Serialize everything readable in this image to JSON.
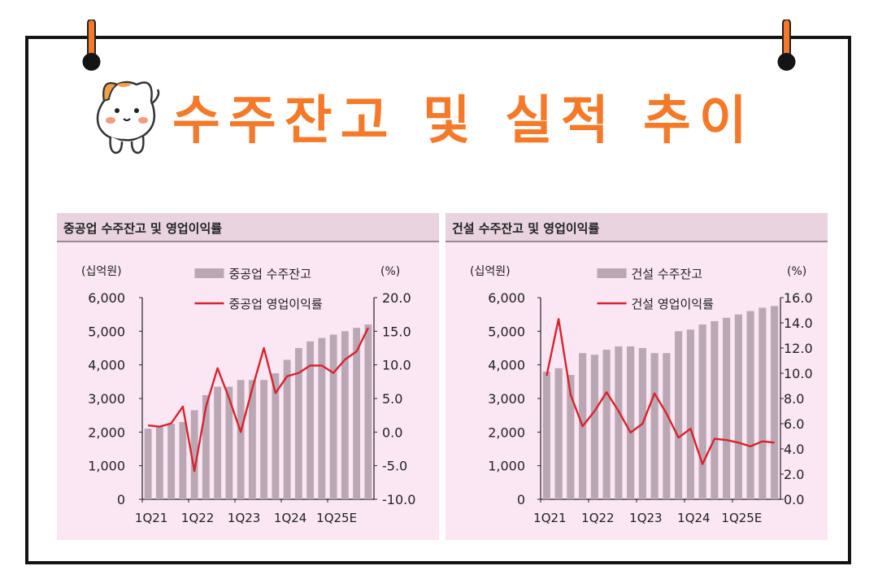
{
  "header": {
    "title": "수주잔고 및 실적 추이"
  },
  "colors": {
    "title": "#f47a2a",
    "bar": "#b9a8b3",
    "line": "#d8232e",
    "panel_bg": "#fbe6f3",
    "panel_header_bg": "#e8d3de"
  },
  "chart_data": [
    {
      "type": "bar+line",
      "title": "중공업 수주잔고 및 영업이익률",
      "left_unit": "(십억원)",
      "right_unit": "(%)",
      "left_ylim": [
        0,
        6000
      ],
      "left_ticks": [
        "6,000",
        "5,000",
        "4,000",
        "3,000",
        "2,000",
        "1,000",
        "0"
      ],
      "right_ylim": [
        -10,
        20
      ],
      "right_ticks": [
        "20.0",
        "15.0",
        "10.0",
        "5.0",
        "0.0",
        "-5.0",
        "-10.0"
      ],
      "x_tick_labels": [
        "1Q21",
        "1Q22",
        "1Q23",
        "1Q24",
        "1Q25E"
      ],
      "categories": [
        "1Q21",
        "2Q21",
        "3Q21",
        "4Q21",
        "1Q22",
        "2Q22",
        "3Q22",
        "4Q22",
        "1Q23",
        "2Q23",
        "3Q23",
        "4Q23",
        "1Q24",
        "2Q24",
        "3Q24",
        "4Q24",
        "1Q25E",
        "2Q25E",
        "3Q25E",
        "4Q25E"
      ],
      "series": [
        {
          "name": "중공업 수주잔고",
          "kind": "bar",
          "axis": "left",
          "values": [
            2100,
            2150,
            2250,
            2300,
            2650,
            3100,
            3350,
            3350,
            3550,
            3550,
            3550,
            3750,
            4150,
            4500,
            4700,
            4800,
            4900,
            5000,
            5100,
            5200
          ]
        },
        {
          "name": "중공업 영업이익률",
          "kind": "line",
          "axis": "right",
          "values": [
            1.0,
            0.8,
            1.3,
            3.8,
            -5.8,
            3.8,
            9.5,
            5.0,
            0.0,
            6.5,
            12.5,
            5.8,
            8.3,
            8.8,
            9.9,
            9.9,
            8.8,
            10.8,
            12.0,
            15.5
          ]
        }
      ],
      "legend": "top-center"
    },
    {
      "type": "bar+line",
      "title": "건설 수주잔고 및 영업이익률",
      "left_unit": "(십억원)",
      "right_unit": "(%)",
      "left_ylim": [
        0,
        6000
      ],
      "left_ticks": [
        "6,000",
        "5,000",
        "4,000",
        "3,000",
        "2,000",
        "1,000",
        "0"
      ],
      "right_ylim": [
        0,
        16
      ],
      "right_ticks": [
        "16.0",
        "14.0",
        "12.0",
        "10.0",
        "8.0",
        "6.0",
        "4.0",
        "2.0",
        "0.0"
      ],
      "x_tick_labels": [
        "1Q21",
        "1Q22",
        "1Q23",
        "1Q24",
        "1Q25E"
      ],
      "categories": [
        "1Q21",
        "2Q21",
        "3Q21",
        "4Q21",
        "1Q22",
        "2Q22",
        "3Q22",
        "4Q22",
        "1Q23",
        "2Q23",
        "3Q23",
        "4Q23",
        "1Q24",
        "2Q24",
        "3Q24",
        "4Q24",
        "1Q25E",
        "2Q25E",
        "3Q25E",
        "4Q25E"
      ],
      "series": [
        {
          "name": "건설 수주잔고",
          "kind": "bar",
          "axis": "left",
          "values": [
            3800,
            3900,
            3700,
            4350,
            4300,
            4450,
            4550,
            4550,
            4500,
            4350,
            4350,
            5000,
            5050,
            5200,
            5300,
            5400,
            5500,
            5600,
            5700,
            5750
          ]
        },
        {
          "name": "건설 영업이익률",
          "kind": "line",
          "axis": "right",
          "values": [
            9.8,
            14.3,
            8.3,
            5.8,
            7.0,
            8.5,
            7.0,
            5.3,
            6.0,
            8.4,
            6.8,
            4.9,
            5.6,
            2.8,
            4.8,
            4.7,
            4.5,
            4.2,
            4.6,
            4.5
          ]
        }
      ],
      "legend": "top-center"
    }
  ]
}
